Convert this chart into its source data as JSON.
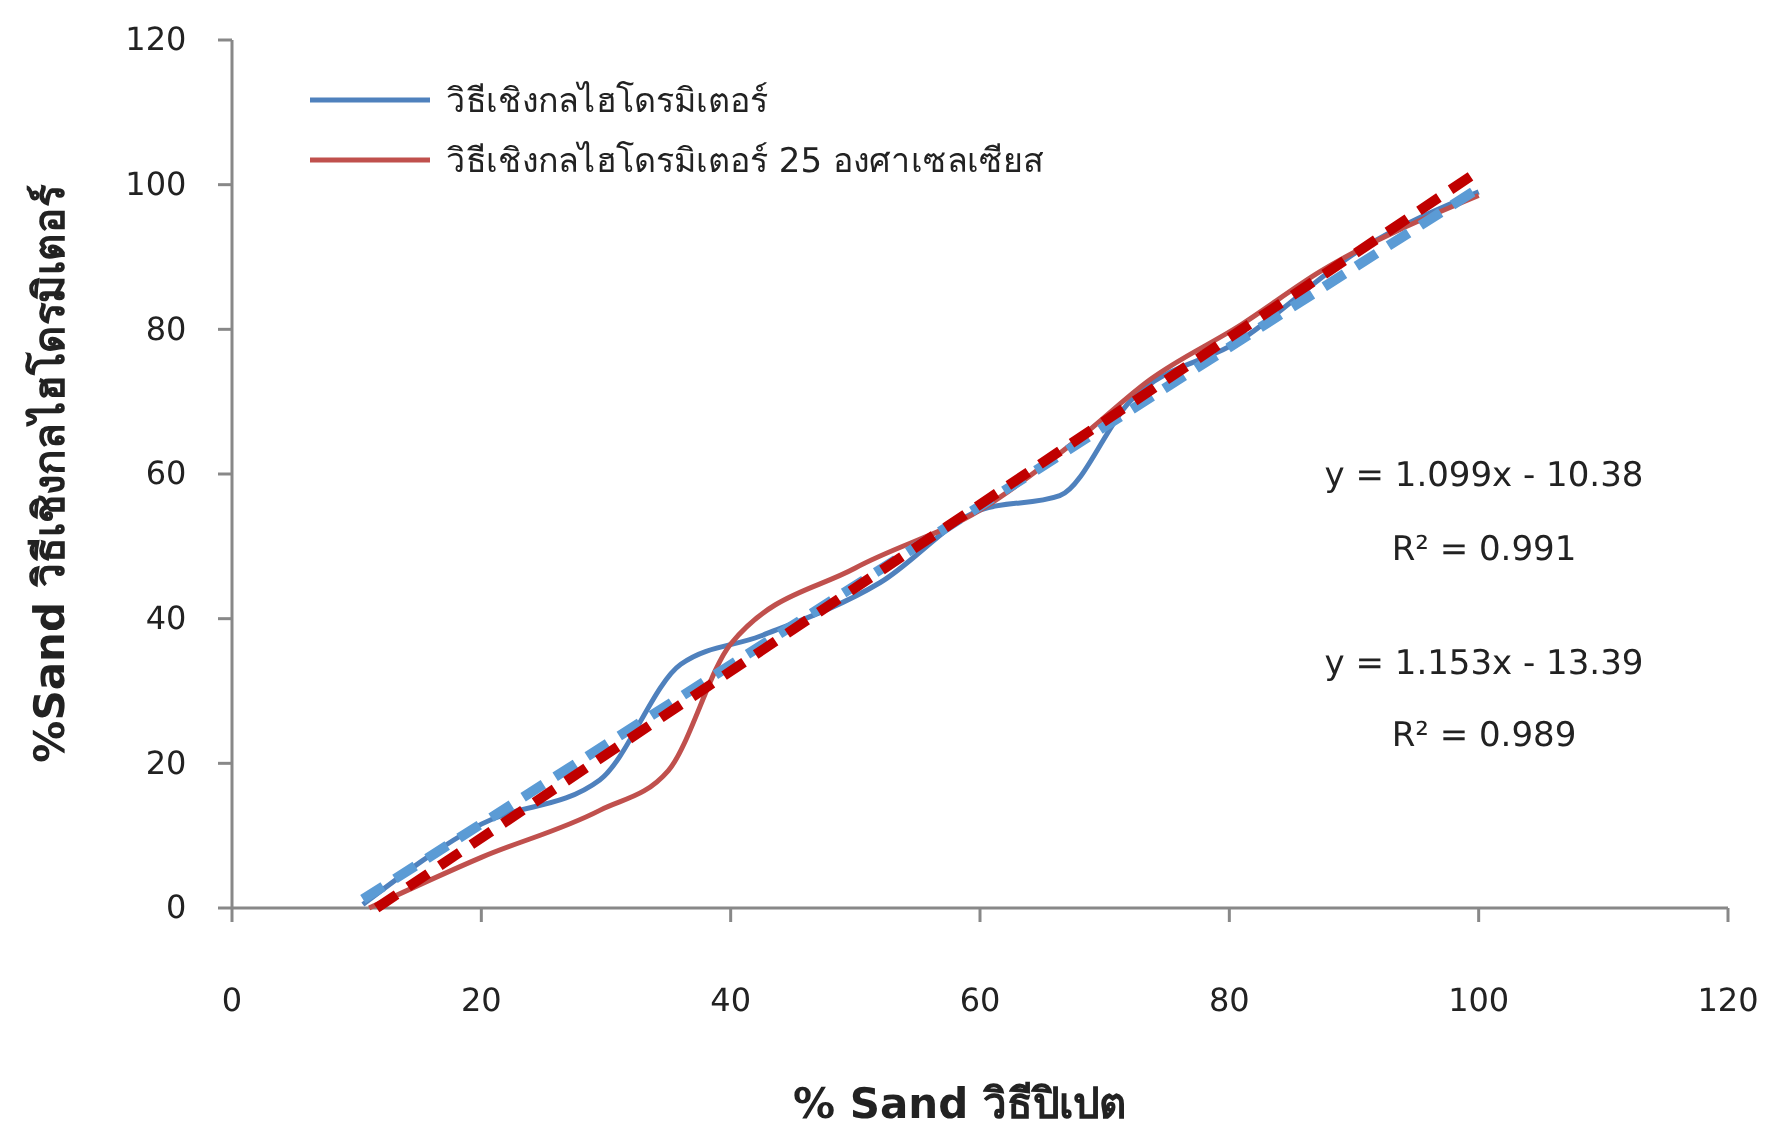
{
  "chart_data": {
    "type": "line",
    "xlabel": "% Sand วิธีปิเปต",
    "ylabel": "%Sand วิธีเชิงกลไฮโดรมิเตอร์",
    "xlim": [
      0,
      120
    ],
    "xticks": [
      0,
      20,
      40,
      60,
      80,
      100,
      120
    ],
    "ylim": [
      0,
      120
    ],
    "yticks": [
      0,
      20,
      40,
      60,
      80,
      100,
      120
    ],
    "legend": "top left",
    "grid": false,
    "series": [
      {
        "name": "วิธีเชิงกลไฮโดรมิเตอร์",
        "color": "#4f81bd",
        "line_style": "solid",
        "x": [
          10.5,
          20,
          29.5,
          36,
          42.4,
          52,
          60,
          66.4,
          72,
          80.9,
          90.5,
          100
        ],
        "values": [
          0.5,
          11.6,
          17.7,
          33.7,
          37.6,
          45,
          55,
          57,
          70,
          78.5,
          91,
          99
        ]
      },
      {
        "name": "วิธีเชิงกลไฮโดรมิเตอร์ 25 องศาเซลเซียส",
        "color": "#c0504d",
        "line_style": "solid",
        "x": [
          11,
          20,
          29.5,
          35,
          40,
          50,
          60,
          68,
          73.6,
          81,
          87.3,
          100
        ],
        "values": [
          0,
          7,
          13.5,
          19,
          36.5,
          47,
          55,
          65,
          73,
          80.7,
          88,
          98.5
        ]
      },
      {
        "color": "#5b9bd5",
        "line_style": "dashed",
        "x": [
          10.5,
          100
        ],
        "values": [
          1.2,
          99.5
        ]
      },
      {
        "color": "#c00000",
        "line_style": "dashed",
        "x": [
          11.6,
          100
        ],
        "values": [
          0,
          101.9
        ]
      }
    ],
    "annotations": [
      "y = 1.099x - 10.38",
      "R² = 0.991",
      "y = 1.153x - 13.39",
      "R² = 0.989"
    ]
  }
}
